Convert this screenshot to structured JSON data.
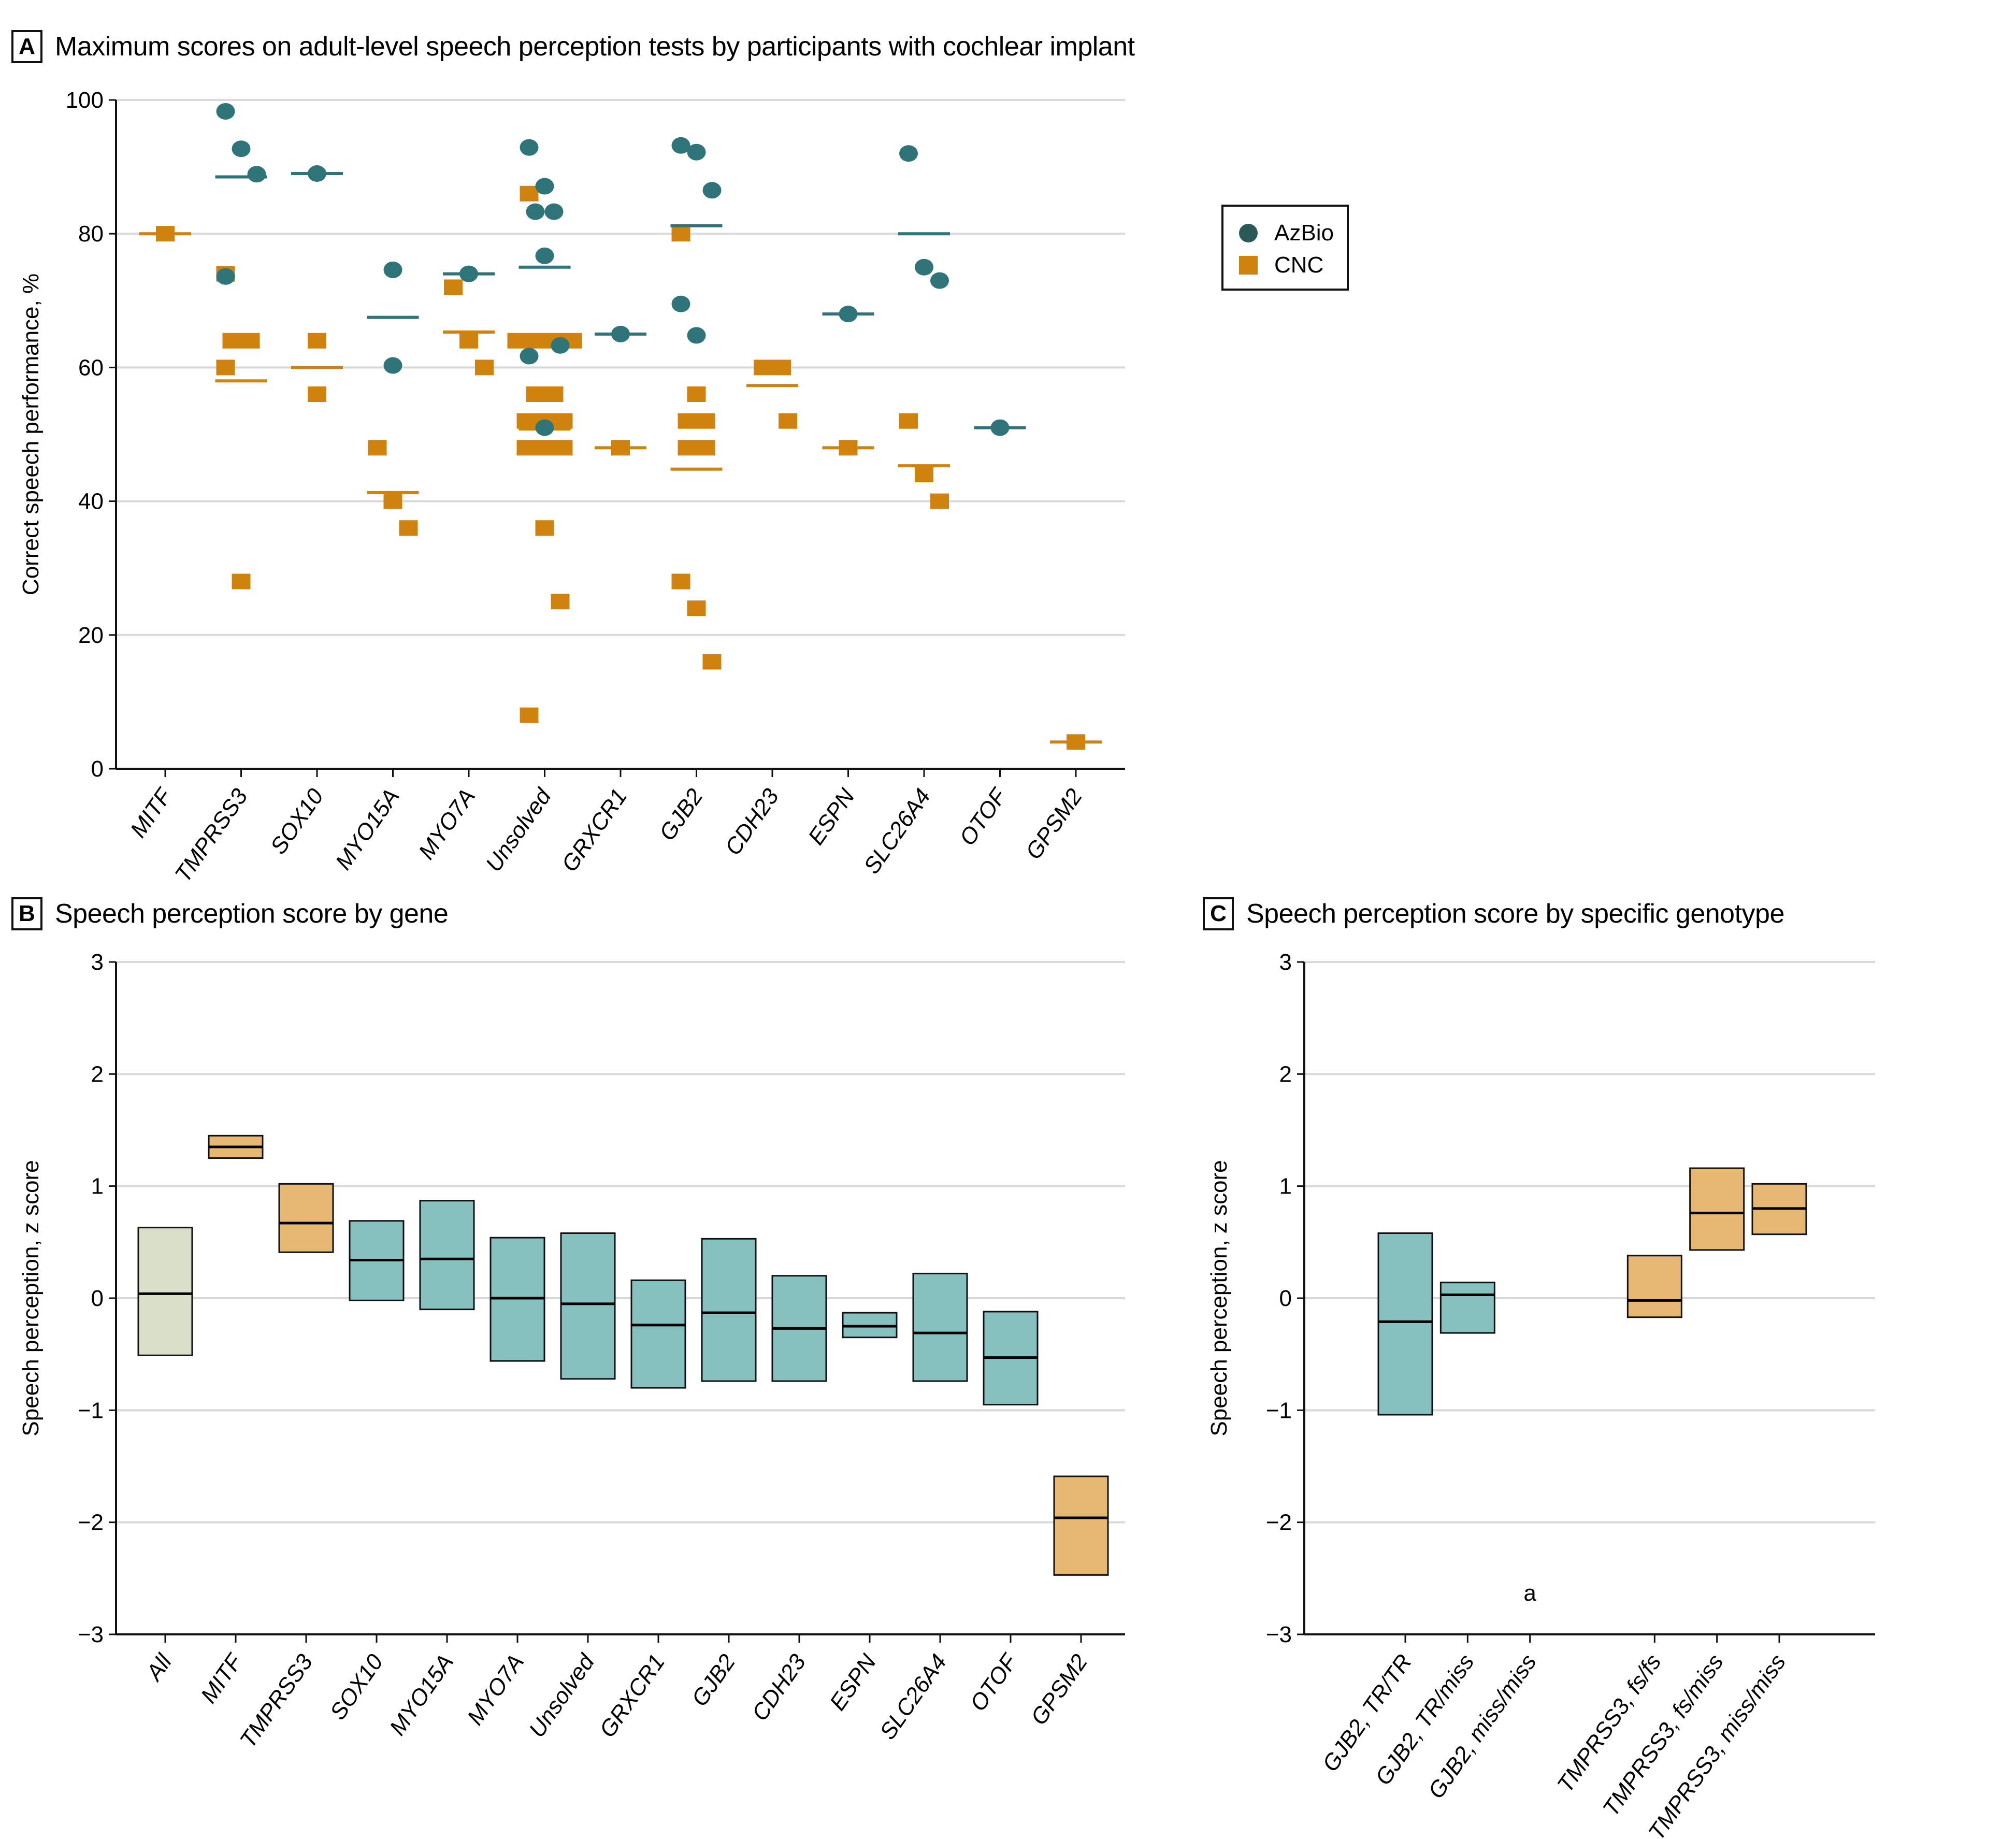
{
  "colors": {
    "azbio": "#2e7479",
    "azbio_legend": "#2a5a57",
    "cnc": "#d0820e",
    "box_teal": "#86c1c0",
    "box_orange": "#e7b874",
    "box_all": "#dadfca",
    "grid": "#d9d9d9",
    "axis": "#111111"
  },
  "panels": {
    "A": {
      "letter": "A",
      "title": "Maximum scores on adult-level speech perception tests by participants with cochlear implant"
    },
    "B": {
      "letter": "B",
      "title": "Speech perception score by gene"
    },
    "C": {
      "letter": "C",
      "title": "Speech perception score by specific genotype"
    }
  },
  "legend": [
    {
      "label": "AzBio",
      "shape": "circle"
    },
    {
      "label": "CNC",
      "shape": "square"
    }
  ],
  "chart_data": [
    {
      "id": "A",
      "type": "scatter",
      "title": "Maximum scores on adult-level speech perception tests by participants with cochlear implant",
      "xlabel": "",
      "ylabel": "Correct speech performance, %",
      "ylim": [
        0,
        100
      ],
      "yticks": [
        0,
        20,
        40,
        60,
        80,
        100
      ],
      "grid": true,
      "legend_position": "right",
      "categories": [
        "MITF",
        "TMPRSS3",
        "SOX10",
        "MYO15A",
        "MYO7A",
        "Unsolved",
        "GRXCR1",
        "GJB2",
        "CDH23",
        "ESPN",
        "SLC26A4",
        "OTOF",
        "GPSM2"
      ],
      "series": [
        {
          "name": "AzBio",
          "marker": "circle",
          "points": {
            "MITF": [],
            "TMPRSS3": [
              98.3,
              92.7,
              88.9,
              73.6
            ],
            "SOX10": [
              89
            ],
            "MYO15A": [
              74.6,
              60.3
            ],
            "MYO7A": [
              74
            ],
            "Unsolved": [
              92.9,
              87.1,
              83.3,
              83.3,
              76.7,
              63.3,
              61.7,
              51
            ],
            "GRXCR1": [
              65
            ],
            "GJB2": [
              93.2,
              92.2,
              86.5,
              69.5,
              64.8
            ],
            "CDH23": [],
            "ESPN": [
              68
            ],
            "SLC26A4": [
              92,
              75,
              73
            ],
            "OTOF": [
              51
            ],
            "GPSM2": []
          },
          "means": {
            "TMPRSS3": 88.5,
            "SOX10": 89,
            "MYO15A": 67.5,
            "MYO7A": 74,
            "Unsolved": 75,
            "GRXCR1": 65,
            "GJB2": 81.2,
            "ESPN": 68,
            "SLC26A4": 80,
            "OTOF": 51
          }
        },
        {
          "name": "CNC",
          "marker": "square",
          "points": {
            "MITF": [
              80
            ],
            "TMPRSS3": [
              74,
              64,
              64,
              60,
              28
            ],
            "SOX10": [
              64,
              56
            ],
            "MYO15A": [
              48,
              40,
              36
            ],
            "MYO7A": [
              72,
              64,
              60
            ],
            "Unsolved": [
              86,
              64,
              64,
              64,
              64,
              56,
              56,
              52,
              52,
              52,
              48,
              48,
              48,
              36,
              25,
              8
            ],
            "GRXCR1": [
              48
            ],
            "GJB2": [
              80,
              56,
              52,
              52,
              48,
              48,
              28,
              24,
              16
            ],
            "CDH23": [
              60,
              60,
              52
            ],
            "ESPN": [
              48
            ],
            "SLC26A4": [
              52,
              44,
              40
            ],
            "OTOF": [],
            "GPSM2": [
              4
            ]
          },
          "means": {
            "MITF": 80,
            "TMPRSS3": 58,
            "SOX10": 60,
            "MYO15A": 41.3,
            "MYO7A": 65.3,
            "Unsolved": 50.8,
            "GRXCR1": 48,
            "GJB2": 44.8,
            "CDH23": 57.3,
            "ESPN": 48,
            "SLC26A4": 45.3,
            "GPSM2": 4
          }
        }
      ]
    },
    {
      "id": "B",
      "type": "bar",
      "subtype": "floating-box",
      "title": "Speech perception score by gene",
      "xlabel": "",
      "ylabel": "Speech perception, z score",
      "ylim": [
        -3,
        3
      ],
      "yticks": [
        -3,
        -2,
        -1,
        0,
        1,
        2,
        3
      ],
      "grid": true,
      "categories": [
        "All",
        "MITF",
        "TMPRSS3",
        "SOX10",
        "MYO15A",
        "MYO7A",
        "Unsolved",
        "GRXCR1",
        "GJB2",
        "CDH23",
        "ESPN",
        "SLC26A4",
        "OTOF",
        "GPSM2"
      ],
      "boxes": [
        {
          "label": "All",
          "low": -0.51,
          "median": 0.04,
          "high": 0.63,
          "group": "all"
        },
        {
          "label": "MITF",
          "low": 1.25,
          "median": 1.35,
          "high": 1.45,
          "group": "orange"
        },
        {
          "label": "TMPRSS3",
          "low": 0.41,
          "median": 0.67,
          "high": 1.02,
          "group": "orange"
        },
        {
          "label": "SOX10",
          "low": -0.02,
          "median": 0.34,
          "high": 0.69,
          "group": "teal"
        },
        {
          "label": "MYO15A",
          "low": -0.1,
          "median": 0.35,
          "high": 0.87,
          "group": "teal"
        },
        {
          "label": "MYO7A",
          "low": -0.56,
          "median": 0.0,
          "high": 0.54,
          "group": "teal"
        },
        {
          "label": "Unsolved",
          "low": -0.72,
          "median": -0.05,
          "high": 0.58,
          "group": "teal"
        },
        {
          "label": "GRXCR1",
          "low": -0.8,
          "median": -0.24,
          "high": 0.16,
          "group": "teal"
        },
        {
          "label": "GJB2",
          "low": -0.74,
          "median": -0.13,
          "high": 0.53,
          "group": "teal"
        },
        {
          "label": "CDH23",
          "low": -0.74,
          "median": -0.27,
          "high": 0.2,
          "group": "teal"
        },
        {
          "label": "ESPN",
          "low": -0.35,
          "median": -0.25,
          "high": -0.13,
          "group": "teal"
        },
        {
          "label": "SLC26A4",
          "low": -0.74,
          "median": -0.31,
          "high": 0.22,
          "group": "teal"
        },
        {
          "label": "OTOF",
          "low": -0.95,
          "median": -0.53,
          "high": -0.12,
          "group": "teal"
        },
        {
          "label": "GPSM2",
          "low": -2.47,
          "median": -1.96,
          "high": -1.59,
          "group": "orange"
        }
      ]
    },
    {
      "id": "C",
      "type": "bar",
      "subtype": "floating-box",
      "title": "Speech perception score by specific genotype",
      "xlabel": "",
      "ylabel": "Speech perception, z score",
      "ylim": [
        -3,
        3
      ],
      "yticks": [
        -3,
        -2,
        -1,
        0,
        1,
        2,
        3
      ],
      "grid": true,
      "categories": [
        "GJB2, TR/TR",
        "GJB2, TR/miss",
        "GJB2, miss/miss",
        "",
        "TMPRSS3, fs/fs",
        "TMPRSS3, fs/miss",
        "TMPRSS3, miss/miss"
      ],
      "boxes": [
        {
          "label": "GJB2, TR/TR",
          "low": -1.04,
          "median": -0.21,
          "high": 0.58,
          "group": "teal"
        },
        {
          "label": "GJB2, TR/miss",
          "low": -0.31,
          "median": 0.03,
          "high": 0.14,
          "group": "teal"
        },
        {
          "label": "GJB2, miss/miss",
          "low": null,
          "median": null,
          "high": null,
          "group": "teal",
          "annotation": "a"
        },
        null,
        {
          "label": "TMPRSS3, fs/fs",
          "low": -0.17,
          "median": -0.02,
          "high": 0.38,
          "group": "orange"
        },
        {
          "label": "TMPRSS3, fs/miss",
          "low": 0.43,
          "median": 0.76,
          "high": 1.16,
          "group": "orange"
        },
        {
          "label": "TMPRSS3, miss/miss",
          "low": 0.57,
          "median": 0.8,
          "high": 1.02,
          "group": "orange"
        }
      ]
    }
  ]
}
